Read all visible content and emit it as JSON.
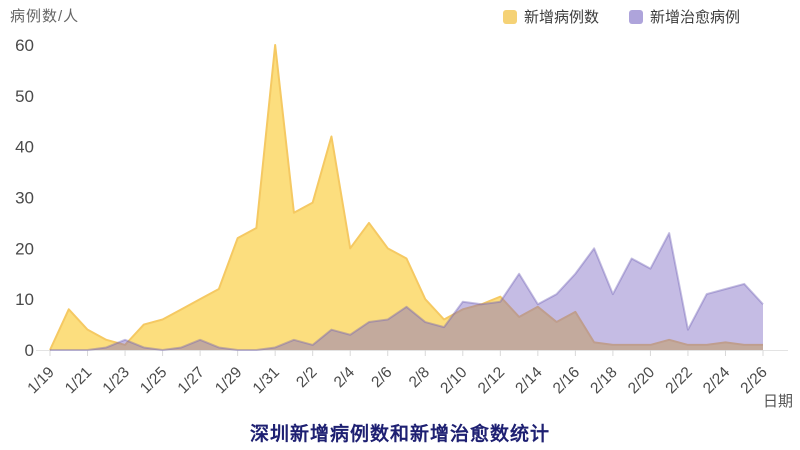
{
  "y_axis_title": "病例数/人",
  "x_axis_unit": "日期",
  "title": "深圳新增病例数和新增治愈数统计",
  "legend": [
    {
      "label": "新增病例数",
      "color": "#F5D276"
    },
    {
      "label": "新增治愈病例",
      "color": "#AEA4DB"
    }
  ],
  "colors": {
    "new_cases_fill": "#FCDE7E",
    "new_cases_stroke": "#F5C963",
    "new_recovered_fill": "rgba(126,106,195,0.45)",
    "new_recovered_stroke": "rgba(110,95,180,0.40)",
    "axis_line": "#E3E3E3",
    "tick": "#D8D8D8",
    "axis_text": "#4a4a4a",
    "title_text": "#1e2072"
  },
  "chart_data": {
    "type": "area",
    "title": "深圳新增病例数和新增治愈数统计",
    "xlabel": "日期",
    "ylabel": "病例数/人",
    "ylim": [
      0,
      60
    ],
    "y_ticks": [
      0,
      10,
      20,
      30,
      40,
      50,
      60
    ],
    "x_tick_every": 2,
    "grid": false,
    "legend_position": "top-right",
    "x": [
      "1/19",
      "1/20",
      "1/21",
      "1/22",
      "1/23",
      "1/24",
      "1/25",
      "1/26",
      "1/27",
      "1/28",
      "1/29",
      "1/30",
      "1/31",
      "2/1",
      "2/2",
      "2/3",
      "2/4",
      "2/5",
      "2/6",
      "2/7",
      "2/8",
      "2/9",
      "2/10",
      "2/11",
      "2/12",
      "2/13",
      "2/14",
      "2/15",
      "2/16",
      "2/17",
      "2/18",
      "2/19",
      "2/20",
      "2/21",
      "2/22",
      "2/23",
      "2/24",
      "2/25",
      "2/26"
    ],
    "series": [
      {
        "name": "新增病例数",
        "key": "new-cases",
        "values": [
          0,
          8,
          4,
          2,
          1,
          5,
          6,
          8,
          10,
          12,
          22,
          24,
          60,
          27,
          29,
          42,
          20,
          25,
          20,
          18,
          10,
          6,
          8,
          9,
          10.5,
          6.5,
          8.5,
          5.5,
          7.5,
          1.5,
          1,
          1,
          1,
          2,
          1,
          1,
          1.5,
          1,
          1
        ]
      },
      {
        "name": "新增治愈病例",
        "key": "new-recovered",
        "values": [
          0,
          0,
          0,
          0.5,
          2,
          0.5,
          0,
          0.5,
          2,
          0.5,
          0,
          0,
          0.5,
          2,
          1,
          4,
          3,
          5.5,
          6,
          8.5,
          5.5,
          4.5,
          9.5,
          9,
          9.5,
          15,
          9,
          11,
          15,
          20,
          11,
          18,
          16,
          23,
          4,
          11,
          12,
          13,
          9
        ]
      }
    ]
  }
}
